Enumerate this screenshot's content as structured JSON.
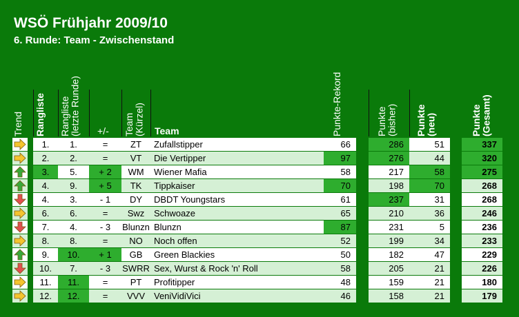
{
  "title": "WSÖ Frühjahr 2009/10",
  "subtitle": "6. Runde: Team - Zwischenstand",
  "headers": {
    "trend": "Trend",
    "rank": "Rangliste",
    "prev_rank_1": "Rangliste",
    "prev_rank_2": "(letzte Runde)",
    "change": "+/-",
    "team_short_1": "Team",
    "team_short_2": "(Kürzel)",
    "team": "Team",
    "record": "Punkte-Rekord",
    "points_prev_1": "Punkte",
    "points_prev_2": "(bisher)",
    "points_new_1": "Punkte",
    "points_new_2": "(neu)",
    "points_total_1": "Punkte",
    "points_total_2": "(Gesamt)"
  },
  "colors": {
    "background": "#0a7a0a",
    "row_light": "#ffffff",
    "row_alt": "#d5f0d5",
    "highlight": "#2ead2e",
    "arrow_up": "#3aa83a",
    "arrow_down": "#e05050",
    "arrow_right": "#f4c430"
  },
  "rows": [
    {
      "trend": "right-arrow-icon",
      "rank": "1.",
      "prev": "1.",
      "change": "=",
      "short": "ZT",
      "team": "Zufallstipper",
      "record": "66",
      "prev_pts": "286",
      "new_pts": "51",
      "total": "337",
      "hl": [
        "prev_pts",
        "total"
      ]
    },
    {
      "trend": "right-arrow-icon",
      "rank": "2.",
      "prev": "2.",
      "change": "=",
      "short": "VT",
      "team": "Die Vertipper",
      "record": "97",
      "prev_pts": "276",
      "new_pts": "44",
      "total": "320",
      "hl": [
        "record",
        "prev_pts",
        "total"
      ]
    },
    {
      "trend": "up-arrow-icon",
      "rank": "3.",
      "prev": "5.",
      "change": "+ 2",
      "short": "WM",
      "team": "Wiener Mafia",
      "record": "58",
      "prev_pts": "217",
      "new_pts": "58",
      "total": "275",
      "hl": [
        "rank",
        "change",
        "new_pts",
        "total"
      ]
    },
    {
      "trend": "up-arrow-icon",
      "rank": "4.",
      "prev": "9.",
      "change": "+ 5",
      "short": "TK",
      "team": "Tippkaiser",
      "record": "70",
      "prev_pts": "198",
      "new_pts": "70",
      "total": "268",
      "hl": [
        "change",
        "record",
        "new_pts"
      ]
    },
    {
      "trend": "down-arrow-icon",
      "rank": "4.",
      "prev": "3.",
      "change": "- 1",
      "short": "DY",
      "team": "DBDT Youngstars",
      "record": "61",
      "prev_pts": "237",
      "new_pts": "31",
      "total": "268",
      "hl": [
        "prev_pts"
      ]
    },
    {
      "trend": "right-arrow-icon",
      "rank": "6.",
      "prev": "6.",
      "change": "=",
      "short": "Swz",
      "team": "Schwoaze",
      "record": "65",
      "prev_pts": "210",
      "new_pts": "36",
      "total": "246",
      "hl": []
    },
    {
      "trend": "down-arrow-icon",
      "rank": "7.",
      "prev": "4.",
      "change": "- 3",
      "short": "Blunzn",
      "team": "Blunzn",
      "record": "87",
      "prev_pts": "231",
      "new_pts": "5",
      "total": "236",
      "hl": [
        "record"
      ]
    },
    {
      "trend": "right-arrow-icon",
      "rank": "8.",
      "prev": "8.",
      "change": "=",
      "short": "NO",
      "team": "Noch offen",
      "record": "52",
      "prev_pts": "199",
      "new_pts": "34",
      "total": "233",
      "hl": []
    },
    {
      "trend": "up-arrow-icon",
      "rank": "9.",
      "prev": "10.",
      "change": "+ 1",
      "short": "GB",
      "team": "Green Blackies",
      "record": "50",
      "prev_pts": "182",
      "new_pts": "47",
      "total": "229",
      "hl": [
        "prev",
        "change"
      ]
    },
    {
      "trend": "down-arrow-icon",
      "rank": "10.",
      "prev": "7.",
      "change": "- 3",
      "short": "SWRR",
      "team": "Sex, Wurst & Rock 'n' Roll",
      "record": "58",
      "prev_pts": "205",
      "new_pts": "21",
      "total": "226",
      "hl": []
    },
    {
      "trend": "right-arrow-icon",
      "rank": "11.",
      "prev": "11.",
      "change": "=",
      "short": "PT",
      "team": "Profitipper",
      "record": "48",
      "prev_pts": "159",
      "new_pts": "21",
      "total": "180",
      "hl": [
        "prev"
      ]
    },
    {
      "trend": "right-arrow-icon",
      "rank": "12.",
      "prev": "12.",
      "change": "=",
      "short": "VVV",
      "team": "VeniVidiVici",
      "record": "46",
      "prev_pts": "158",
      "new_pts": "21",
      "total": "179",
      "hl": [
        "prev"
      ]
    }
  ]
}
